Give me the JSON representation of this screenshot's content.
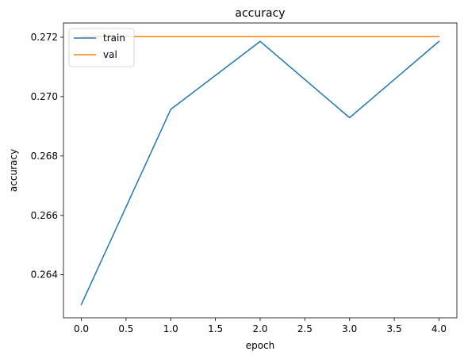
{
  "chart_data": {
    "type": "line",
    "title": "accuracy",
    "xlabel": "epoch",
    "ylabel": "accuracy",
    "xlim": [
      -0.2,
      4.2
    ],
    "ylim": [
      0.26255,
      0.27248
    ],
    "xticks": [
      0.0,
      0.5,
      1.0,
      1.5,
      2.0,
      2.5,
      3.0,
      3.5,
      4.0
    ],
    "xtick_labels": [
      "0.0",
      "0.5",
      "1.0",
      "1.5",
      "2.0",
      "2.5",
      "3.0",
      "3.5",
      "4.0"
    ],
    "yticks": [
      0.264,
      0.266,
      0.268,
      0.27,
      0.272
    ],
    "ytick_labels": [
      "0.264",
      "0.266",
      "0.268",
      "0.270",
      "0.272"
    ],
    "grid": false,
    "legend_position": "top-left",
    "x": [
      0,
      1,
      2,
      3,
      4
    ],
    "series": [
      {
        "name": "train",
        "color": "#1f77b4",
        "values": [
          0.263,
          0.26957,
          0.27186,
          0.26929,
          0.27186
        ]
      },
      {
        "name": "val",
        "color": "#ff7f0e",
        "values": [
          0.27202,
          0.27202,
          0.27202,
          0.27202,
          0.27202
        ]
      }
    ]
  }
}
